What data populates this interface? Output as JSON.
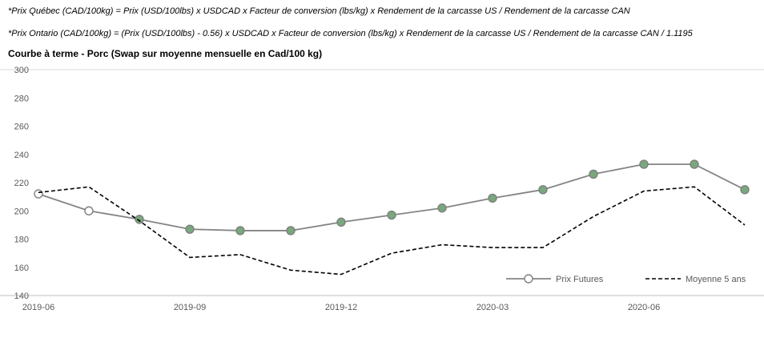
{
  "footnotes": {
    "line1": "*Prix Québec (CAD/100kg) = Prix (USD/100lbs) x USDCAD x Facteur de conversion (lbs/kg) x Rendement de la carcasse US / Rendement de la carcasse CAN",
    "line2": "*Prix Ontario (CAD/100kg) = (Prix (USD/100lbs) - 0.56) x USDCAD x Facteur de conversion (lbs/kg) x Rendement de la carcasse US / Rendement de la carcasse CAN / 1.1195"
  },
  "chart": {
    "title": "Courbe à terme - Porc (Swap sur moyenne mensuelle en Cad/100 kg)"
  },
  "chart_data": {
    "type": "line",
    "x": [
      "2019-06",
      "2019-07",
      "2019-08",
      "2019-09",
      "2019-10",
      "2019-11",
      "2019-12",
      "2020-01",
      "2020-02",
      "2020-03",
      "2020-04",
      "2020-05",
      "2020-06",
      "2020-07",
      "2020-08"
    ],
    "x_tick_labels": [
      "2019-06",
      "2019-09",
      "2019-12",
      "2020-03",
      "2020-06"
    ],
    "x_tick_positions": [
      0,
      3,
      6,
      9,
      12
    ],
    "ylim": [
      140,
      300
    ],
    "y_ticks": [
      140,
      160,
      180,
      200,
      220,
      240,
      260,
      280,
      300
    ],
    "grid": false,
    "legend_position": "bottom-right-inside",
    "series": [
      {
        "name": "Prix Futures",
        "style": "solid-with-markers",
        "color": "#848484",
        "width": 1.8,
        "markers": true,
        "marker_fill": "#78a87c",
        "marker_stroke": "#7f7f7f",
        "open_marker_indices": [
          0,
          1
        ],
        "values": [
          212,
          200,
          194,
          187,
          186,
          186,
          192,
          197,
          202,
          209,
          215,
          226,
          233,
          233,
          215
        ]
      },
      {
        "name": "Moyenne 5 ans",
        "style": "dashed",
        "color": "#000000",
        "width": 1.6,
        "dash": "5,3",
        "markers": false,
        "values": [
          213,
          217,
          193,
          167,
          169,
          158,
          155,
          170,
          176,
          174,
          174,
          196,
          214,
          217,
          190
        ]
      }
    ]
  }
}
